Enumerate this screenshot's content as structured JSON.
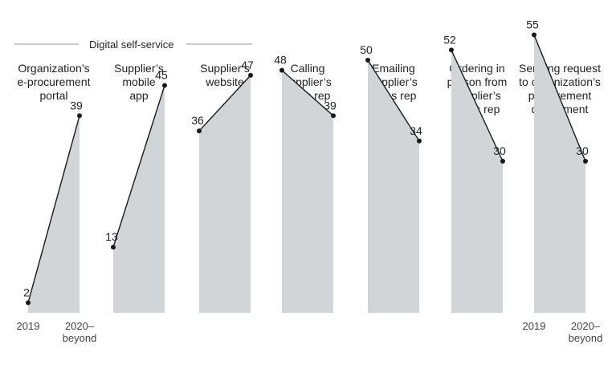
{
  "chart_data": {
    "type": "area",
    "group_label": "Digital self-service",
    "x": [
      "2019",
      "2020–beyond"
    ],
    "x_tick_lines": [
      [
        "2019"
      ],
      [
        "2020–",
        "beyond"
      ]
    ],
    "ylim": [
      0,
      60
    ],
    "grid": false,
    "colors": {
      "fill": "#d1d5d8",
      "line": "#1a1a1a",
      "divider": "#9a9a9a",
      "text": "#222222"
    },
    "series": [
      {
        "name": "Organization’s e-procurement portal",
        "title_lines": [
          "Organization’s",
          "e-procurement",
          "portal"
        ],
        "values": [
          2,
          39
        ]
      },
      {
        "name": "Supplier’s mobile app",
        "title_lines": [
          "Supplier’s",
          "mobile",
          "app"
        ],
        "values": [
          13,
          45
        ]
      },
      {
        "name": "Supplier’s website",
        "title_lines": [
          "Supplier’s",
          "website"
        ],
        "values": [
          36,
          47
        ]
      },
      {
        "name": "Calling supplier’s sales rep",
        "title_lines": [
          "Calling",
          "supplier’s",
          "sales rep"
        ],
        "values": [
          48,
          39
        ]
      },
      {
        "name": "Emailing supplier’s sales rep",
        "title_lines": [
          "Emailing",
          "supplier’s",
          "sales rep"
        ],
        "values": [
          50,
          34
        ]
      },
      {
        "name": "Ordering in person from supplier’s sales rep",
        "title_lines": [
          "Ordering in",
          "person from",
          "supplier’s",
          "sales rep"
        ],
        "values": [
          52,
          30
        ]
      },
      {
        "name": "Sending request to organization’s procurement department",
        "title_lines": [
          "Sending request",
          "to organization’s",
          "procurement",
          "department"
        ],
        "values": [
          55,
          30
        ]
      }
    ]
  }
}
